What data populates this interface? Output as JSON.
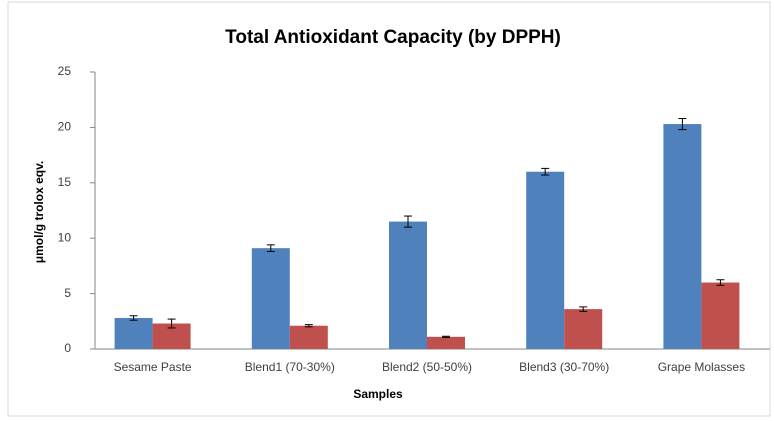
{
  "chart_data": {
    "type": "bar",
    "title": "Total Antioxidant Capacity (by DPPH)",
    "x_label": "Samples",
    "y_label": "μmol/g  trolox eqv.",
    "categories": [
      "Sesame Paste",
      "Blend1 (70-30%)",
      "Blend2 (50-50%)",
      "Blend3 (30-70%)",
      "Grape Molasses"
    ],
    "series": [
      {
        "color": "#4f81bd",
        "values": [
          2.8,
          9.1,
          11.5,
          16.0,
          20.3
        ],
        "errors": [
          0.2,
          0.3,
          0.5,
          0.3,
          0.5
        ]
      },
      {
        "color": "#c0504d",
        "values": [
          2.3,
          2.1,
          1.1,
          3.6,
          6.0
        ],
        "errors": [
          0.4,
          0.1,
          0.05,
          0.2,
          0.25
        ]
      }
    ],
    "ylim": [
      0,
      25
    ],
    "yticks": [
      0,
      5,
      10,
      15,
      20,
      25
    ],
    "grid": false
  }
}
